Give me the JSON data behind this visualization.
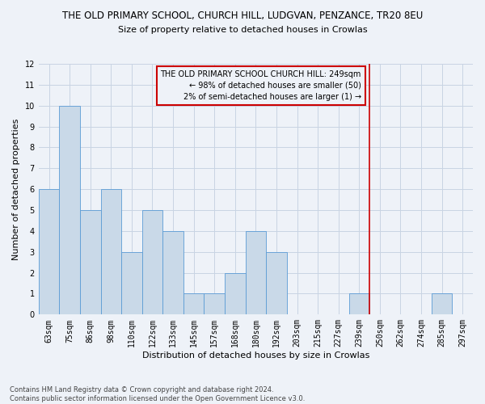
{
  "title": "THE OLD PRIMARY SCHOOL, CHURCH HILL, LUDGVAN, PENZANCE, TR20 8EU",
  "subtitle": "Size of property relative to detached houses in Crowlas",
  "xlabel": "Distribution of detached houses by size in Crowlas",
  "ylabel": "Number of detached properties",
  "categories": [
    "63sqm",
    "75sqm",
    "86sqm",
    "98sqm",
    "110sqm",
    "122sqm",
    "133sqm",
    "145sqm",
    "157sqm",
    "168sqm",
    "180sqm",
    "192sqm",
    "203sqm",
    "215sqm",
    "227sqm",
    "239sqm",
    "250sqm",
    "262sqm",
    "274sqm",
    "285sqm",
    "297sqm"
  ],
  "values": [
    6,
    10,
    5,
    6,
    3,
    5,
    4,
    1,
    1,
    2,
    4,
    3,
    0,
    0,
    0,
    1,
    0,
    0,
    0,
    1,
    0
  ],
  "bar_color": "#c9d9e8",
  "bar_edge_color": "#5b9bd5",
  "grid_color": "#c8d4e3",
  "background_color": "#eef2f8",
  "vline_x_index": 15.5,
  "vline_color": "#cc0000",
  "annotation_text": "THE OLD PRIMARY SCHOOL CHURCH HILL: 249sqm\n← 98% of detached houses are smaller (50)\n2% of semi-detached houses are larger (1) →",
  "annotation_box_color": "#cc0000",
  "ylim": [
    0,
    12
  ],
  "yticks": [
    0,
    1,
    2,
    3,
    4,
    5,
    6,
    7,
    8,
    9,
    10,
    11,
    12
  ],
  "footnote": "Contains HM Land Registry data © Crown copyright and database right 2024.\nContains public sector information licensed under the Open Government Licence v3.0.",
  "title_fontsize": 8.5,
  "subtitle_fontsize": 8,
  "ylabel_fontsize": 8,
  "xlabel_fontsize": 8,
  "tick_fontsize": 7,
  "annot_fontsize": 7,
  "footnote_fontsize": 6
}
